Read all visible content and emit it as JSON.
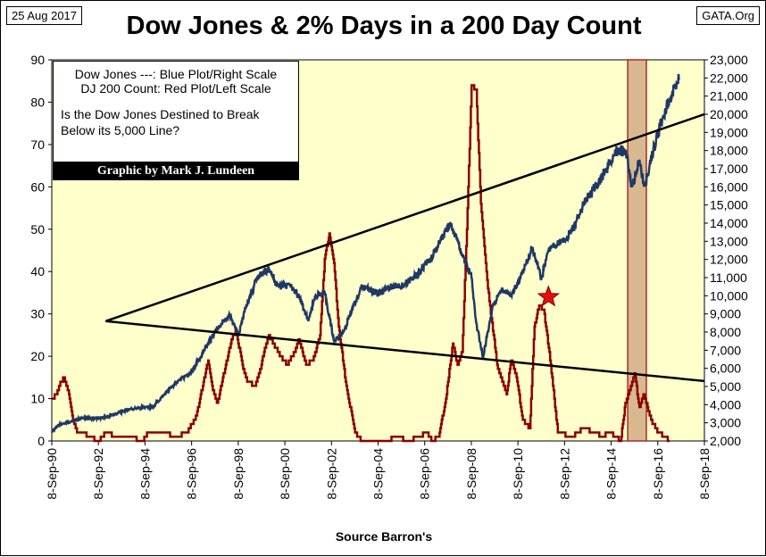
{
  "header": {
    "date": "25 Aug 2017",
    "title": "Dow Jones & 2% Days in a 200 Day Count",
    "site": "GATA.Org"
  },
  "legend": {
    "line1": "Dow Jones ---: Blue Plot/Right Scale",
    "line2": "DJ 200 Count: Red Plot/Left Scale",
    "question_line1": "Is the Dow Jones Destined to Break",
    "question_line2": "Below its 5,000 Line?",
    "credit": "Graphic by Mark J. Lundeen"
  },
  "colors": {
    "plot_bg": "#ffffcc",
    "dow": "#1f3864",
    "count": "#8b0000",
    "band": "#d8b98f",
    "band_edge": "#a52a2a",
    "star": "#e01010",
    "trend": "#000000"
  },
  "chart_data": {
    "type": "line",
    "xlabel": "Source Barron's",
    "x_range": [
      1990.69,
      2018.69
    ],
    "x_tick_labels": [
      "8-Sep-90",
      "8-Sep-92",
      "8-Sep-94",
      "8-Sep-96",
      "8-Sep-98",
      "8-Sep-00",
      "8-Sep-02",
      "8-Sep-04",
      "8-Sep-06",
      "8-Sep-08",
      "8-Sep-10",
      "8-Sep-12",
      "8-Sep-14",
      "8-Sep-16",
      "8-Sep-18"
    ],
    "left_axis": {
      "min": 0,
      "max": 90,
      "ticks": [
        0,
        10,
        20,
        30,
        40,
        50,
        60,
        70,
        80,
        90
      ],
      "label": "DJ 200 Count"
    },
    "right_axis": {
      "min": 2000,
      "max": 23000,
      "ticks": [
        "2,000",
        "3,000",
        "4,000",
        "5,000",
        "6,000",
        "7,000",
        "8,000",
        "9,000",
        "10,000",
        "11,000",
        "12,000",
        "13,000",
        "14,000",
        "15,000",
        "16,000",
        "17,000",
        "18,000",
        "19,000",
        "20,000",
        "21,000",
        "22,000",
        "23,000"
      ],
      "label": "Dow Jones"
    },
    "series": [
      {
        "name": "Dow Jones",
        "axis": "right",
        "points": [
          [
            1990.7,
            2500
          ],
          [
            1991.0,
            2900
          ],
          [
            1992.0,
            3250
          ],
          [
            1992.7,
            3250
          ],
          [
            1993.0,
            3300
          ],
          [
            1994.0,
            3750
          ],
          [
            1994.7,
            3850
          ],
          [
            1995.0,
            3850
          ],
          [
            1996.0,
            5200
          ],
          [
            1996.7,
            5800
          ],
          [
            1997.0,
            6500
          ],
          [
            1997.6,
            7800
          ],
          [
            1998.3,
            9000
          ],
          [
            1998.7,
            7800
          ],
          [
            1999.0,
            9300
          ],
          [
            1999.5,
            11000
          ],
          [
            2000.0,
            11500
          ],
          [
            2000.4,
            10500
          ],
          [
            2000.9,
            10600
          ],
          [
            2001.3,
            10000
          ],
          [
            2001.7,
            8600
          ],
          [
            2002.0,
            10000
          ],
          [
            2002.4,
            10200
          ],
          [
            2002.8,
            7500
          ],
          [
            2003.2,
            8000
          ],
          [
            2003.6,
            9300
          ],
          [
            2004.0,
            10500
          ],
          [
            2004.7,
            10100
          ],
          [
            2005.2,
            10500
          ],
          [
            2005.8,
            10600
          ],
          [
            2006.4,
            11200
          ],
          [
            2006.9,
            12000
          ],
          [
            2007.5,
            13300
          ],
          [
            2007.8,
            14000
          ],
          [
            2008.3,
            12300
          ],
          [
            2008.7,
            11000
          ],
          [
            2008.9,
            8500
          ],
          [
            2009.2,
            6600
          ],
          [
            2009.6,
            9400
          ],
          [
            2010.0,
            10400
          ],
          [
            2010.4,
            10000
          ],
          [
            2010.8,
            11000
          ],
          [
            2011.3,
            12600
          ],
          [
            2011.7,
            11000
          ],
          [
            2012.0,
            12500
          ],
          [
            2012.5,
            13000
          ],
          [
            2013.0,
            13500
          ],
          [
            2013.5,
            15000
          ],
          [
            2014.0,
            16000
          ],
          [
            2014.5,
            17000
          ],
          [
            2014.9,
            18000
          ],
          [
            2015.3,
            18000
          ],
          [
            2015.6,
            16000
          ],
          [
            2015.9,
            17500
          ],
          [
            2016.1,
            16000
          ],
          [
            2016.5,
            18000
          ],
          [
            2016.9,
            19800
          ],
          [
            2017.2,
            20800
          ],
          [
            2017.6,
            21900
          ]
        ]
      },
      {
        "name": "DJ 200 Count",
        "axis": "left",
        "points": [
          [
            1990.7,
            10
          ],
          [
            1990.9,
            11
          ],
          [
            1991.0,
            13
          ],
          [
            1991.2,
            15
          ],
          [
            1991.4,
            12
          ],
          [
            1991.6,
            5
          ],
          [
            1991.8,
            2
          ],
          [
            1992.0,
            2
          ],
          [
            1992.3,
            1
          ],
          [
            1992.7,
            0
          ],
          [
            1993.0,
            2
          ],
          [
            1993.5,
            1
          ],
          [
            1994.0,
            1
          ],
          [
            1994.6,
            0
          ],
          [
            1994.8,
            2
          ],
          [
            1995.5,
            2
          ],
          [
            1996.0,
            1
          ],
          [
            1996.5,
            2
          ],
          [
            1996.9,
            6
          ],
          [
            1997.2,
            14
          ],
          [
            1997.4,
            19
          ],
          [
            1997.6,
            12
          ],
          [
            1997.8,
            9
          ],
          [
            1998.0,
            14
          ],
          [
            1998.4,
            24
          ],
          [
            1998.6,
            26
          ],
          [
            1998.9,
            17
          ],
          [
            1999.1,
            14
          ],
          [
            1999.4,
            13
          ],
          [
            1999.6,
            16
          ],
          [
            1999.8,
            21
          ],
          [
            2000.0,
            25
          ],
          [
            2000.2,
            23
          ],
          [
            2000.5,
            20
          ],
          [
            2000.8,
            18
          ],
          [
            2001.1,
            21
          ],
          [
            2001.3,
            24
          ],
          [
            2001.6,
            18
          ],
          [
            2001.9,
            19
          ],
          [
            2002.2,
            25
          ],
          [
            2002.4,
            43
          ],
          [
            2002.6,
            49
          ],
          [
            2002.8,
            42
          ],
          [
            2003.0,
            27
          ],
          [
            2003.3,
            14
          ],
          [
            2003.7,
            2
          ],
          [
            2004.0,
            0
          ],
          [
            2005.0,
            0
          ],
          [
            2005.5,
            1
          ],
          [
            2006.0,
            0
          ],
          [
            2006.4,
            1
          ],
          [
            2006.8,
            2
          ],
          [
            2007.0,
            0
          ],
          [
            2007.3,
            1
          ],
          [
            2007.6,
            10
          ],
          [
            2007.9,
            23
          ],
          [
            2008.1,
            18
          ],
          [
            2008.3,
            21
          ],
          [
            2008.5,
            50
          ],
          [
            2008.7,
            84
          ],
          [
            2008.9,
            83
          ],
          [
            2009.1,
            56
          ],
          [
            2009.4,
            36
          ],
          [
            2009.8,
            18
          ],
          [
            2010.2,
            11
          ],
          [
            2010.4,
            19
          ],
          [
            2010.6,
            16
          ],
          [
            2010.9,
            5
          ],
          [
            2011.2,
            3
          ],
          [
            2011.4,
            27
          ],
          [
            2011.6,
            32
          ],
          [
            2011.8,
            31
          ],
          [
            2012.1,
            18
          ],
          [
            2012.4,
            2
          ],
          [
            2013.0,
            1
          ],
          [
            2013.5,
            3
          ],
          [
            2014.0,
            2
          ],
          [
            2014.3,
            1
          ],
          [
            2014.6,
            2
          ],
          [
            2014.9,
            1
          ],
          [
            2015.1,
            0
          ],
          [
            2015.3,
            9
          ],
          [
            2015.5,
            12
          ],
          [
            2015.7,
            16
          ],
          [
            2015.9,
            8
          ],
          [
            2016.1,
            11
          ],
          [
            2016.4,
            5
          ],
          [
            2016.7,
            2
          ],
          [
            2017.0,
            1
          ],
          [
            2017.2,
            0
          ]
        ]
      }
    ],
    "trendlines": [
      {
        "name": "upper-trendline",
        "axis": "right",
        "from": [
          1993.0,
          8600
        ],
        "to": [
          2018.69,
          20000
        ]
      },
      {
        "name": "lower-trendline",
        "axis": "right",
        "from": [
          1993.0,
          8600
        ],
        "to": [
          2018.69,
          5300
        ]
      }
    ],
    "highlight_band": {
      "from": 2015.4,
      "to": 2016.2
    },
    "star_marker": {
      "x": 2012.0,
      "axis": "left",
      "y": 34
    }
  }
}
